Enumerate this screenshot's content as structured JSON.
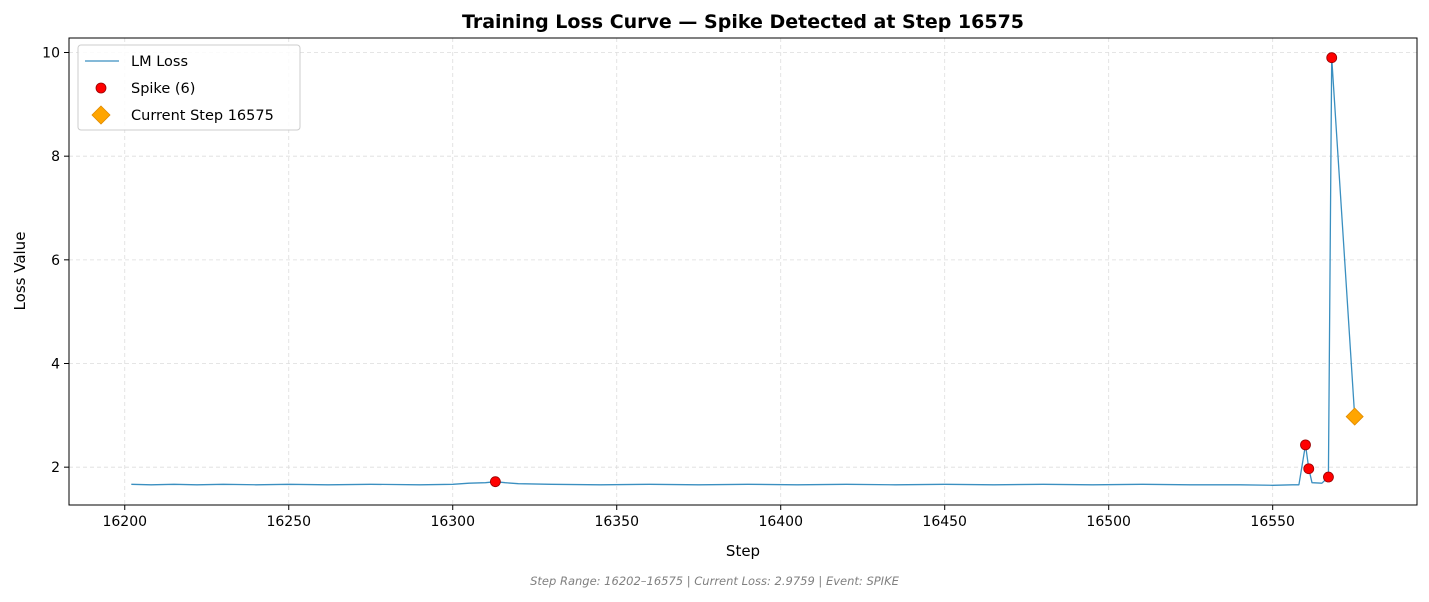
{
  "chart_data": {
    "type": "line",
    "title": "Training Loss Curve — Spike Detected at Step 16575",
    "xlabel": "Step",
    "ylabel": "Loss Value",
    "xlim": [
      16183,
      16594
    ],
    "ylim": [
      1.27,
      10.28
    ],
    "xticks": [
      16200,
      16250,
      16300,
      16350,
      16400,
      16450,
      16500,
      16550
    ],
    "yticks": [
      2,
      4,
      6,
      8,
      10
    ],
    "grid": true,
    "legend_position": "upper-left",
    "colors": {
      "line": "#3a8fc0",
      "spike": "#ff0000",
      "spike_edge": "#990000",
      "current": "#ffa500",
      "current_edge": "#e08a00"
    },
    "series": [
      {
        "name": "LM Loss",
        "kind": "line",
        "points": [
          [
            16202,
            1.67
          ],
          [
            16208,
            1.66
          ],
          [
            16215,
            1.67
          ],
          [
            16222,
            1.66
          ],
          [
            16230,
            1.67
          ],
          [
            16240,
            1.66
          ],
          [
            16250,
            1.67
          ],
          [
            16262,
            1.66
          ],
          [
            16275,
            1.67
          ],
          [
            16290,
            1.66
          ],
          [
            16300,
            1.67
          ],
          [
            16305,
            1.69
          ],
          [
            16310,
            1.7
          ],
          [
            16313,
            1.72
          ],
          [
            16316,
            1.7
          ],
          [
            16320,
            1.68
          ],
          [
            16330,
            1.67
          ],
          [
            16345,
            1.66
          ],
          [
            16360,
            1.67
          ],
          [
            16375,
            1.66
          ],
          [
            16390,
            1.67
          ],
          [
            16405,
            1.66
          ],
          [
            16420,
            1.67
          ],
          [
            16435,
            1.66
          ],
          [
            16450,
            1.67
          ],
          [
            16465,
            1.66
          ],
          [
            16480,
            1.67
          ],
          [
            16495,
            1.66
          ],
          [
            16510,
            1.67
          ],
          [
            16525,
            1.66
          ],
          [
            16540,
            1.66
          ],
          [
            16550,
            1.65
          ],
          [
            16556,
            1.66
          ],
          [
            16558,
            1.66
          ],
          [
            16560,
            2.43
          ],
          [
            16561,
            1.97
          ],
          [
            16562,
            1.7
          ],
          [
            16565,
            1.69
          ],
          [
            16567,
            1.81
          ],
          [
            16568,
            9.9
          ],
          [
            16575,
            2.9759
          ]
        ]
      },
      {
        "name": "Spike (6)",
        "kind": "scatter",
        "points": [
          [
            16313,
            1.72
          ],
          [
            16560,
            2.43
          ],
          [
            16561,
            1.97
          ],
          [
            16567,
            1.81
          ],
          [
            16568,
            9.9
          ]
        ]
      },
      {
        "name": "Current Step 16575",
        "kind": "marker",
        "points": [
          [
            16575,
            2.9759
          ]
        ]
      }
    ],
    "footer": "Step Range: 16202–16575 | Current Loss: 2.9759 | Event: SPIKE"
  }
}
